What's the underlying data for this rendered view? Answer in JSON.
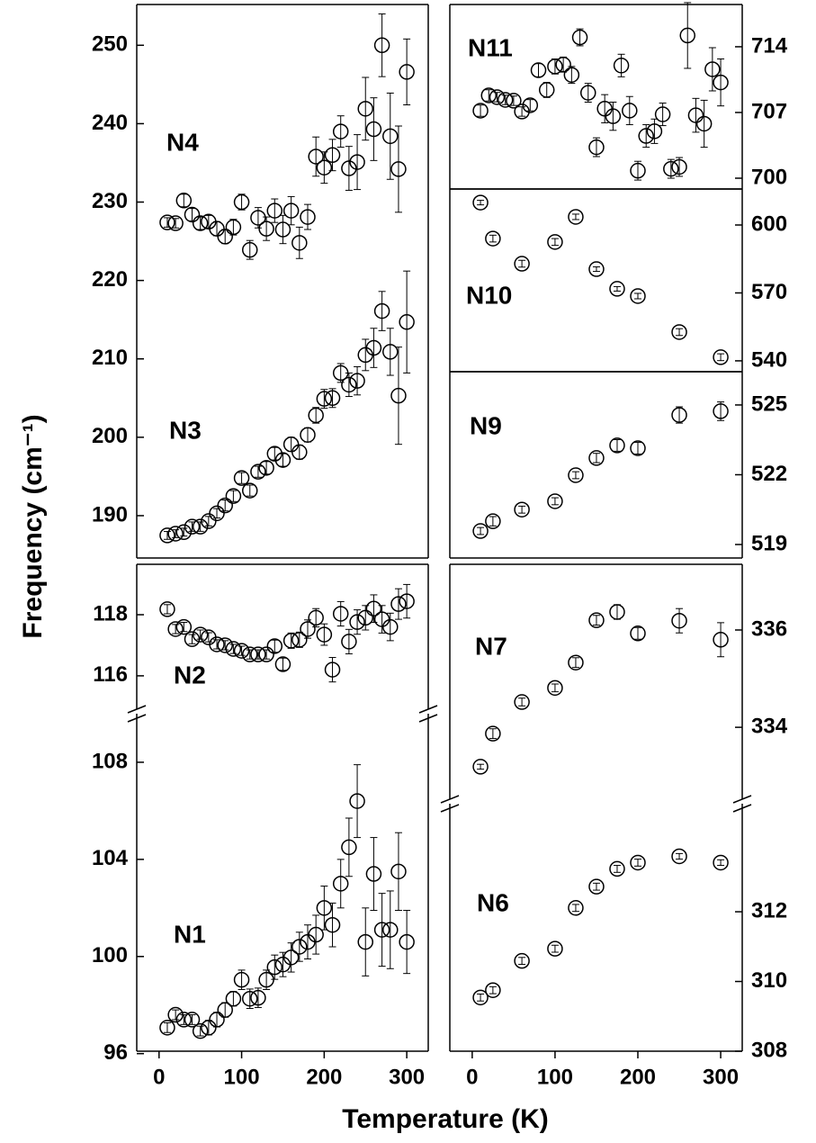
{
  "xlabel": "Temperature (K)",
  "ylabel": "Frequency (cm⁻¹)",
  "chart_data": [
    {
      "type": "scatter",
      "x": [
        10,
        20,
        30,
        40,
        50,
        60,
        70,
        80,
        90,
        100,
        110,
        120,
        130,
        140,
        150,
        160,
        170,
        180,
        190,
        200,
        210,
        220,
        230,
        240,
        250,
        260,
        270,
        280,
        290,
        300
      ],
      "xlim": [
        -27,
        326
      ],
      "ylim": [
        184.6,
        255.2
      ],
      "yticks": [
        190,
        200,
        210,
        220,
        230,
        240,
        250
      ],
      "series": [
        {
          "name": "N4",
          "values": [
            227.4,
            227.3,
            230.2,
            228.4,
            227.3,
            227.5,
            226.6,
            225.6,
            226.8,
            230.0,
            223.9,
            228.0,
            226.6,
            228.9,
            226.5,
            228.9,
            224.8,
            228.1,
            235.8,
            234.4,
            236.0,
            239.0,
            234.3,
            235.1,
            241.9,
            239.3,
            250.0,
            238.4,
            234.2,
            246.6
          ],
          "errors": [
            0.6,
            0.6,
            0.8,
            0.8,
            0.8,
            0.8,
            0.9,
            0.9,
            1.0,
            1.0,
            1.2,
            1.3,
            1.5,
            1.5,
            1.8,
            1.8,
            2.0,
            1.6,
            2.5,
            2.0,
            2.0,
            2.0,
            2.8,
            3.5,
            4.0,
            4.0,
            4.0,
            5.5,
            5.5,
            4.2
          ]
        },
        {
          "name": "N3",
          "values": [
            187.48,
            187.7,
            187.9,
            188.6,
            188.6,
            189.3,
            190.3,
            191.3,
            192.5,
            194.8,
            193.2,
            195.6,
            196.1,
            197.9,
            197.1,
            199.1,
            198.1,
            200.3,
            202.8,
            204.9,
            205.0,
            208.2,
            206.7,
            207.2,
            210.5,
            211.4,
            216.1,
            210.9,
            205.3,
            214.7
          ],
          "errors": [
            0.5,
            0.5,
            0.5,
            0.6,
            0.6,
            0.6,
            0.6,
            0.7,
            0.7,
            0.7,
            0.7,
            0.7,
            0.8,
            0.8,
            0.8,
            0.9,
            0.9,
            0.9,
            1.0,
            1.2,
            1.2,
            1.2,
            1.5,
            1.8,
            2.0,
            2.5,
            2.5,
            3.0,
            6.2,
            6.5
          ]
        }
      ]
    },
    {
      "type": "scatter",
      "x": [
        10,
        20,
        30,
        40,
        50,
        60,
        70,
        80,
        90,
        100,
        110,
        120,
        130,
        140,
        150,
        160,
        170,
        180,
        190,
        200,
        210,
        220,
        230,
        240,
        250,
        260,
        270,
        280,
        290,
        300
      ],
      "xlim": [
        -27,
        326
      ],
      "ylim": [
        114.76,
        119.65
      ],
      "yticks": [
        116,
        118
      ],
      "series": [
        {
          "name": "N2",
          "values": [
            118.18,
            117.53,
            117.6,
            117.2,
            117.35,
            117.26,
            117.03,
            117.0,
            116.88,
            116.82,
            116.7,
            116.7,
            116.7,
            116.97,
            116.38,
            117.15,
            117.18,
            117.53,
            117.9,
            117.35,
            116.2,
            118.03,
            117.12,
            117.76,
            117.9,
            118.2,
            117.85,
            117.6,
            118.35,
            118.44
          ],
          "errors": [
            0.15,
            0.15,
            0.15,
            0.15,
            0.15,
            0.15,
            0.15,
            0.15,
            0.15,
            0.15,
            0.15,
            0.15,
            0.15,
            0.2,
            0.2,
            0.25,
            0.25,
            0.3,
            0.3,
            0.35,
            0.4,
            0.4,
            0.4,
            0.4,
            0.4,
            0.45,
            0.45,
            0.45,
            0.5,
            0.55
          ]
        }
      ]
    },
    {
      "type": "scatter",
      "x": [
        10,
        20,
        30,
        40,
        50,
        60,
        70,
        80,
        90,
        100,
        110,
        120,
        130,
        140,
        150,
        160,
        170,
        180,
        190,
        200,
        210,
        220,
        230,
        240,
        250,
        260,
        270,
        280,
        290,
        300
      ],
      "xlim": [
        -27,
        326
      ],
      "ylim": [
        96.1,
        110
      ],
      "yticks": [
        96,
        100,
        104,
        108
      ],
      "xticks": [
        0,
        100,
        200,
        300
      ],
      "series": [
        {
          "name": "N1",
          "values": [
            97.07,
            97.6,
            97.4,
            97.4,
            96.93,
            97.07,
            97.4,
            97.8,
            98.26,
            99.04,
            98.26,
            98.3,
            99.04,
            99.56,
            99.67,
            99.96,
            100.4,
            100.6,
            100.9,
            102.0,
            101.3,
            103.0,
            104.5,
            106.4,
            100.6,
            103.4,
            101.1,
            101.1,
            103.5,
            100.6
          ],
          "errors": [
            0.2,
            0.2,
            0.2,
            0.2,
            0.2,
            0.3,
            0.3,
            0.3,
            0.3,
            0.4,
            0.4,
            0.4,
            0.4,
            0.5,
            0.5,
            0.6,
            0.6,
            0.7,
            0.8,
            0.9,
            0.9,
            1.0,
            1.2,
            1.5,
            1.4,
            1.5,
            1.5,
            1.6,
            1.6,
            1.3
          ]
        }
      ]
    },
    {
      "type": "scatter",
      "x": [
        10,
        20,
        30,
        40,
        50,
        60,
        70,
        80,
        90,
        100,
        110,
        120,
        130,
        140,
        150,
        160,
        170,
        180,
        190,
        200,
        210,
        220,
        230,
        240,
        250,
        260,
        270,
        280,
        290,
        300
      ],
      "xlim": [
        -27,
        326
      ],
      "ylim": [
        698.85,
        718.5
      ],
      "yticks": [
        700,
        707,
        714
      ],
      "series": [
        {
          "name": "N11",
          "values": [
            707.19,
            708.82,
            708.63,
            708.34,
            708.25,
            707.1,
            707.77,
            711.5,
            709.4,
            711.9,
            712.1,
            711.0,
            715.0,
            709.1,
            703.3,
            707.4,
            706.6,
            712.0,
            707.2,
            700.8,
            704.5,
            705.0,
            706.8,
            701.0,
            701.2,
            715.2,
            706.7,
            705.8,
            711.6,
            710.2
          ],
          "errors": [
            0.6,
            0.6,
            0.5,
            0.5,
            0.5,
            0.5,
            0.6,
            0.7,
            0.8,
            0.8,
            0.8,
            0.9,
            0.9,
            1.0,
            1.0,
            1.5,
            1.5,
            1.2,
            1.5,
            1.0,
            1.2,
            1.3,
            1.2,
            1.0,
            1.0,
            3.5,
            1.8,
            2.5,
            2.3,
            2.5
          ]
        }
      ]
    },
    {
      "type": "scatter",
      "x": [
        10,
        25,
        60,
        100,
        125,
        150,
        175,
        200,
        250,
        300
      ],
      "xlim": [
        -27,
        326
      ],
      "ylim": [
        535.2,
        615.9
      ],
      "yticks": [
        540,
        570,
        600
      ],
      "series": [
        {
          "name": "N10",
          "values": [
            609.9,
            594.0,
            582.9,
            592.5,
            603.6,
            580.5,
            571.8,
            568.6,
            552.7,
            541.6
          ],
          "errors": [
            1.0,
            1.5,
            1.5,
            1.5,
            1.2,
            1.0,
            1.0,
            1.2,
            1.5,
            1.5
          ]
        }
      ]
    },
    {
      "type": "scatter",
      "x": [
        10,
        25,
        60,
        100,
        125,
        150,
        175,
        200,
        250,
        300
      ],
      "xlim": [
        -27,
        326
      ],
      "ylim": [
        518.42,
        526.43
      ],
      "yticks": [
        519,
        522,
        525
      ],
      "series": [
        {
          "name": "N9",
          "values": [
            519.58,
            520.0,
            520.5,
            520.86,
            521.98,
            522.72,
            523.26,
            523.14,
            524.57,
            524.73
          ],
          "errors": [
            0.15,
            0.2,
            0.15,
            0.15,
            0.15,
            0.2,
            0.25,
            0.25,
            0.35,
            0.4
          ]
        }
      ]
    },
    {
      "type": "scatter",
      "x": [
        10,
        25,
        60,
        100,
        125,
        150,
        175,
        200,
        250,
        300
      ],
      "xlim": [
        -27,
        326
      ],
      "ylim": [
        332.43,
        337.35
      ],
      "yticks": [
        334,
        336
      ],
      "series": [
        {
          "name": "N7",
          "values": [
            333.19,
            333.87,
            334.52,
            334.81,
            335.33,
            336.2,
            336.37,
            335.93,
            336.19,
            335.8
          ],
          "errors": [
            0.05,
            0.1,
            0.08,
            0.08,
            0.1,
            0.1,
            0.15,
            0.12,
            0.25,
            0.35
          ]
        }
      ]
    },
    {
      "type": "scatter",
      "x": [
        10,
        25,
        60,
        100,
        125,
        150,
        175,
        200,
        250,
        300
      ],
      "xlim": [
        -27,
        326
      ],
      "ylim": [
        308,
        315.1
      ],
      "yticks": [
        308,
        310,
        312
      ],
      "xticks": [
        0,
        100,
        200,
        300
      ],
      "series": [
        {
          "name": "N6",
          "values": [
            309.54,
            309.75,
            310.59,
            310.94,
            312.11,
            312.72,
            313.23,
            313.41,
            313.59,
            313.41
          ],
          "errors": [
            0.1,
            0.1,
            0.1,
            0.1,
            0.1,
            0.1,
            0.1,
            0.1,
            0.08,
            0.08
          ]
        }
      ]
    }
  ]
}
